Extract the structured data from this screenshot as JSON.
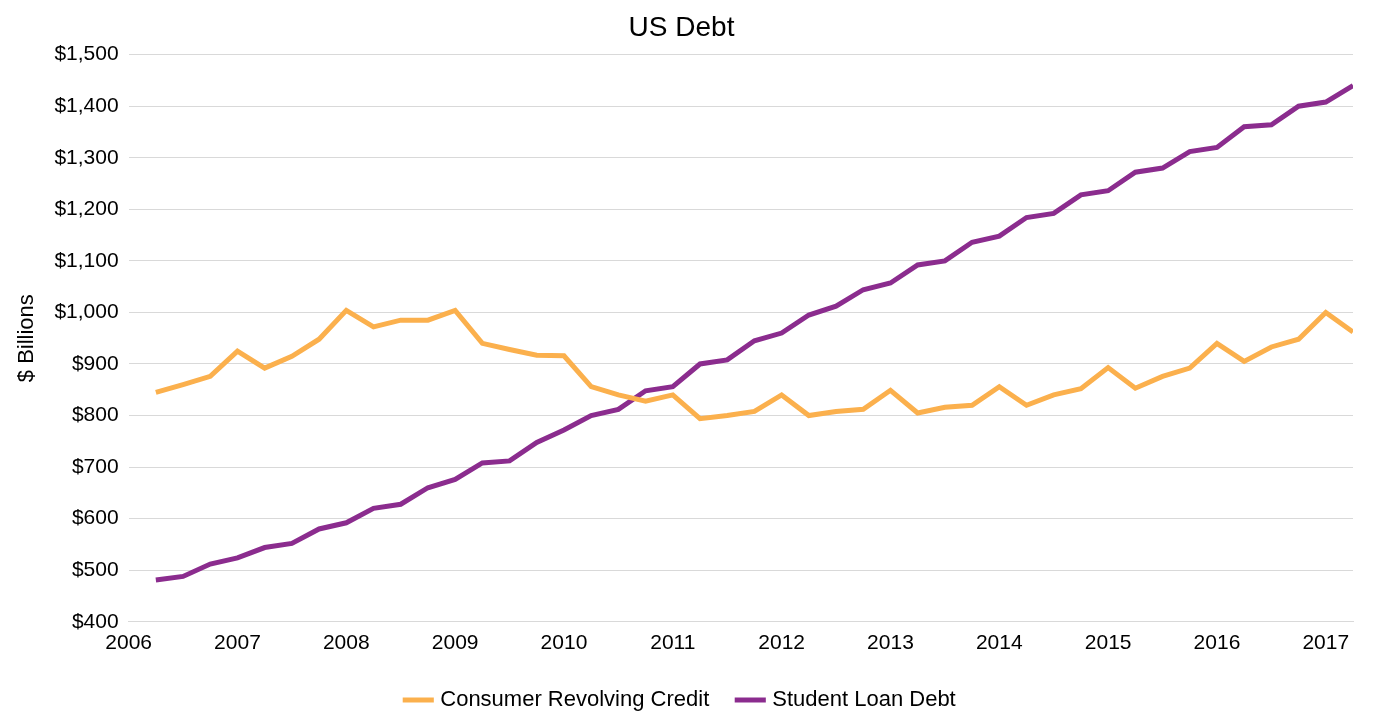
{
  "chart_data": {
    "type": "line",
    "title": "US Debt",
    "y_label": "$ Billions",
    "x": [
      2006.25,
      2006.5,
      2006.75,
      2007,
      2007.25,
      2007.5,
      2007.75,
      2008,
      2008.25,
      2008.5,
      2008.75,
      2009,
      2009.25,
      2009.5,
      2009.75,
      2010,
      2010.25,
      2010.5,
      2010.75,
      2011,
      2011.25,
      2011.5,
      2011.75,
      2012,
      2012.25,
      2012.5,
      2012.75,
      2013,
      2013.25,
      2013.5,
      2013.75,
      2014,
      2014.25,
      2014.5,
      2014.75,
      2015,
      2015.25,
      2015.5,
      2015.75,
      2016,
      2016.25,
      2016.5,
      2016.75,
      2017,
      2017.25
    ],
    "series": [
      {
        "name": "Consumer Revolving Credit",
        "color": "#FBB04D",
        "values": [
          845,
          860,
          876,
          925,
          892,
          915,
          948,
          1004,
          972,
          985,
          985,
          1004,
          940,
          928,
          917,
          916,
          856,
          840,
          828,
          840,
          794,
          800,
          808,
          840,
          800,
          808,
          812,
          849,
          805,
          816,
          820,
          856,
          820,
          840,
          852,
          893,
          853,
          876,
          892,
          940,
          905,
          933,
          948,
          1000,
          962
        ]
      },
      {
        "name": "Student Loan Debt",
        "color": "#8B2C8E",
        "values": [
          481,
          488,
          512,
          524,
          544,
          552,
          580,
          592,
          620,
          628,
          660,
          676,
          708,
          712,
          748,
          772,
          800,
          812,
          848,
          856,
          900,
          908,
          945,
          960,
          995,
          1012,
          1044,
          1057,
          1092,
          1100,
          1136,
          1148,
          1184,
          1192,
          1228,
          1236,
          1272,
          1280,
          1312,
          1320,
          1360,
          1364,
          1400,
          1408,
          1440
        ]
      }
    ],
    "xlim": [
      2006,
      2017.25
    ],
    "xticks": [
      2006,
      2007,
      2008,
      2009,
      2010,
      2011,
      2012,
      2013,
      2014,
      2015,
      2016,
      2017
    ],
    "ylim": [
      400,
      1500
    ],
    "yticks": [
      {
        "value": 400,
        "label": "$400"
      },
      {
        "value": 500,
        "label": "$500"
      },
      {
        "value": 600,
        "label": "$600"
      },
      {
        "value": 700,
        "label": "$700"
      },
      {
        "value": 800,
        "label": "$800"
      },
      {
        "value": 900,
        "label": "$900"
      },
      {
        "value": 1000,
        "label": "$1,000"
      },
      {
        "value": 1100,
        "label": "$1,100"
      },
      {
        "value": 1200,
        "label": "$1,200"
      },
      {
        "value": 1300,
        "label": "$1,300"
      },
      {
        "value": 1400,
        "label": "$1,400"
      },
      {
        "value": 1500,
        "label": "$1,500"
      }
    ],
    "grid": true,
    "legend": "bottom",
    "marker": "none"
  }
}
